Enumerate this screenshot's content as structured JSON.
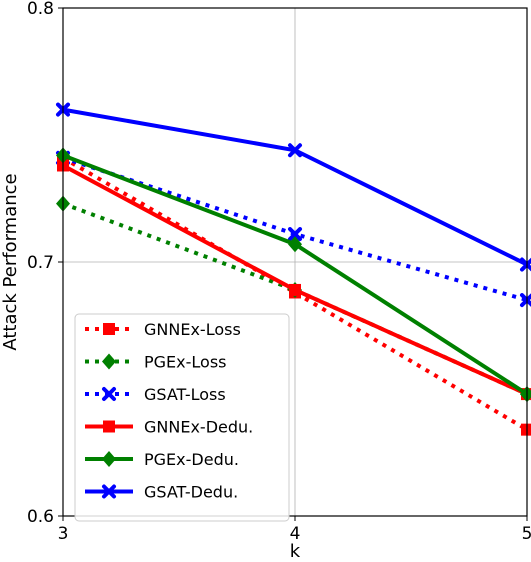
{
  "chart_data": {
    "type": "line",
    "title": "",
    "xlabel": "k",
    "ylabel": "Attack Performance",
    "x": [
      3,
      4,
      5
    ],
    "xlim": [
      3,
      5
    ],
    "ylim": [
      0.6,
      0.8
    ],
    "xticks": [
      "3",
      "4",
      "5"
    ],
    "yticks": [
      "0.6",
      "0.7",
      "0.8"
    ],
    "grid": true,
    "legend_position": "lower-left",
    "series": [
      {
        "name": "GNNEx-Loss",
        "values": [
          0.741,
          0.688,
          0.634
        ],
        "color": "#ff0000",
        "line": "dotted",
        "marker": "square"
      },
      {
        "name": "PGEx-Loss",
        "values": [
          0.723,
          0.689,
          0.648
        ],
        "color": "#008000",
        "line": "dotted",
        "marker": "diamond"
      },
      {
        "name": "GSAT-Loss",
        "values": [
          0.741,
          0.711,
          0.685
        ],
        "color": "#0000ff",
        "line": "dotted",
        "marker": "x"
      },
      {
        "name": "GNNEx-Dedu.",
        "values": [
          0.738,
          0.689,
          0.648
        ],
        "color": "#ff0000",
        "line": "solid",
        "marker": "square"
      },
      {
        "name": "PGEx-Dedu.",
        "values": [
          0.742,
          0.707,
          0.648
        ],
        "color": "#008000",
        "line": "solid",
        "marker": "diamond"
      },
      {
        "name": "GSAT-Dedu.",
        "values": [
          0.76,
          0.744,
          0.699
        ],
        "color": "#0000ff",
        "line": "solid",
        "marker": "x"
      }
    ]
  }
}
